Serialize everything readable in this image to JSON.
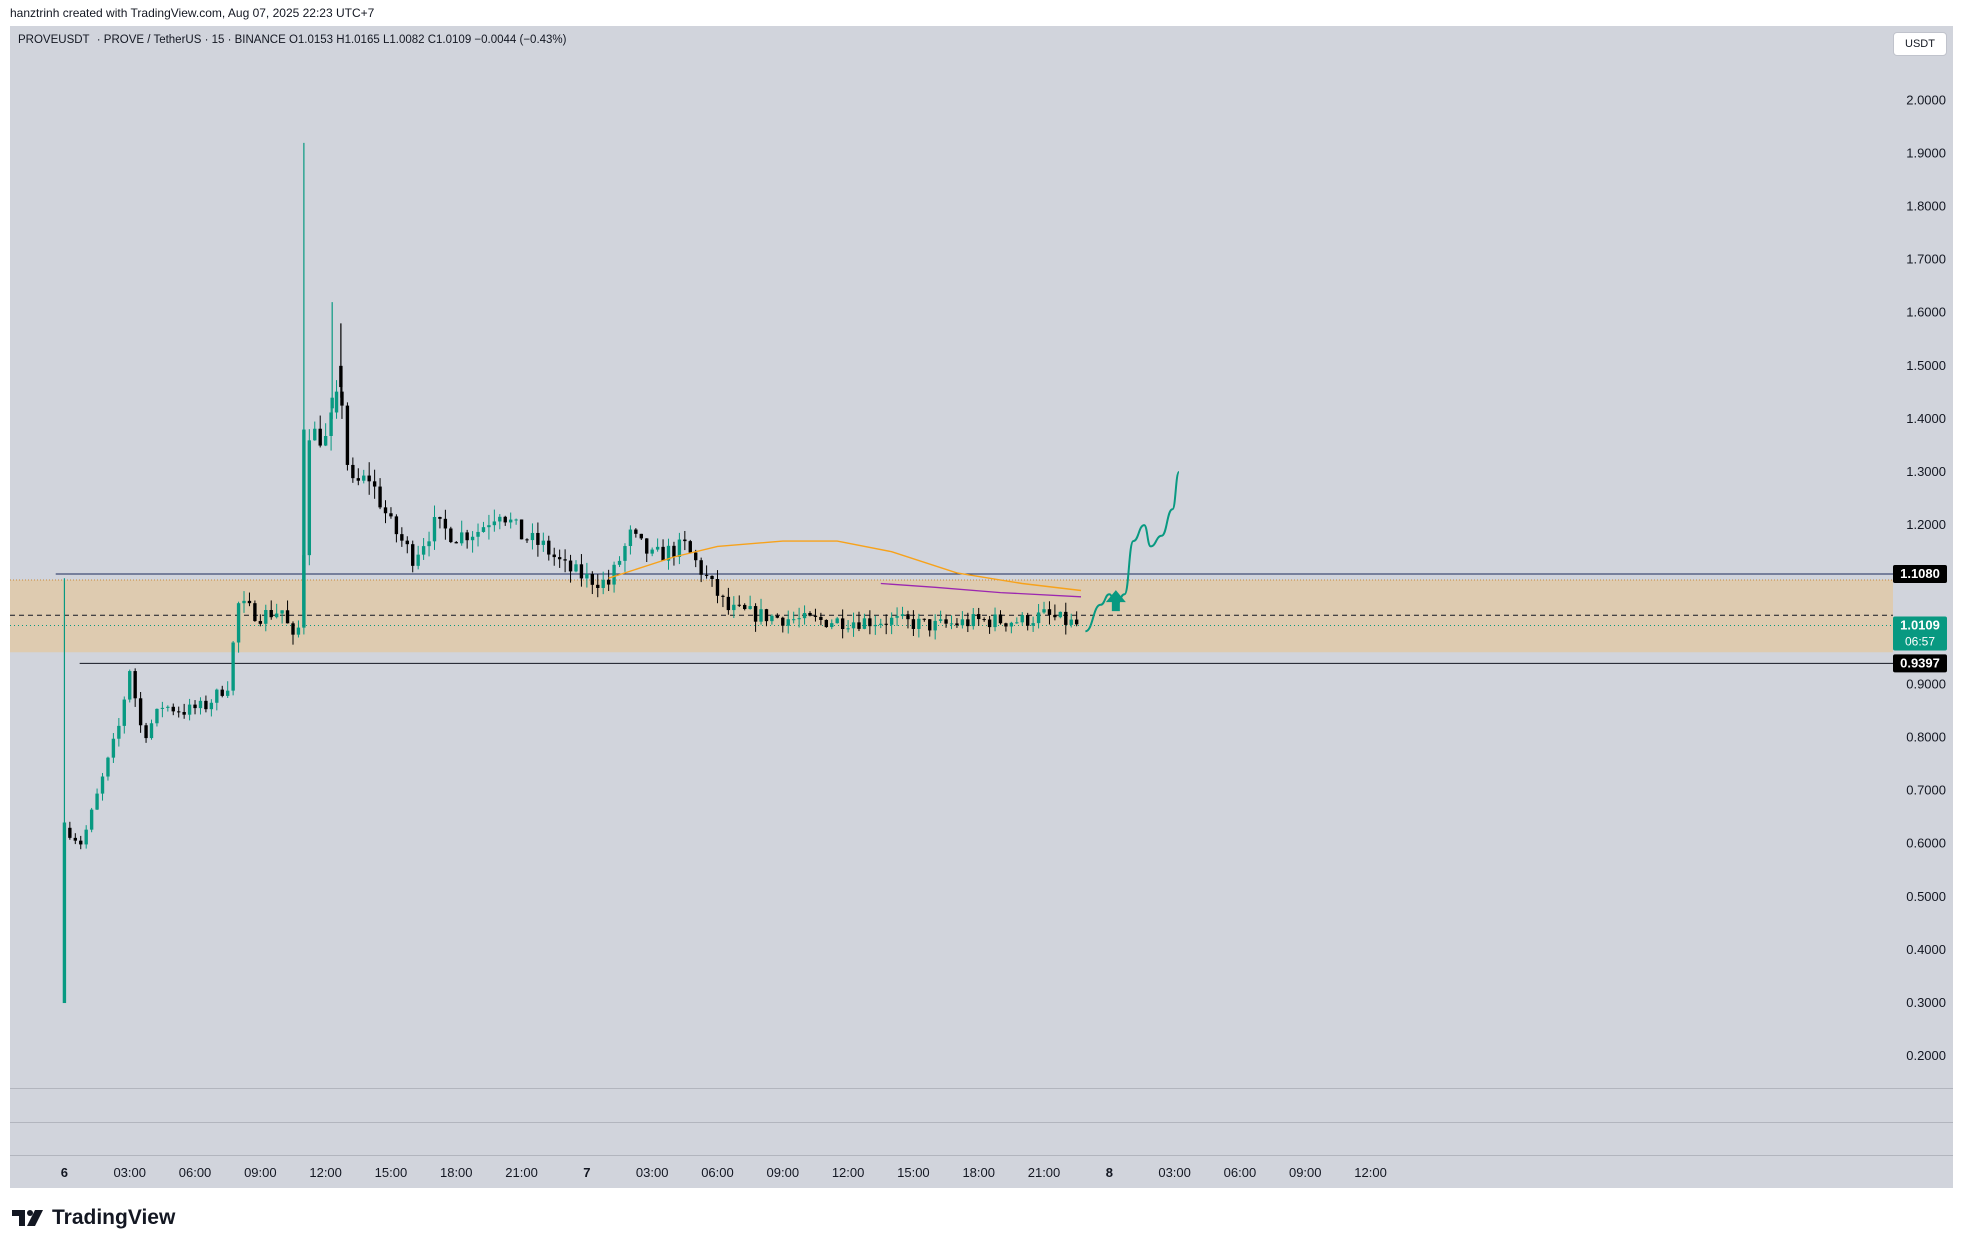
{
  "header": {
    "caption": "hanztrinh created with TradingView.com, Aug 07, 2025 22:23 UTC+7"
  },
  "legend": {
    "symbol": "PROVEUSDT",
    "description": "· PROVE / TetherUS · 15 · BINANCE",
    "open": "O1.0153",
    "high": "H1.0165",
    "low": "L1.0082",
    "close": "C1.0109",
    "change": "−0.0044 (−0.43%)"
  },
  "currency_button": "USDT",
  "brand": {
    "name": "TradingView"
  },
  "colors": {
    "background": "#d1d4dc",
    "up": "#089981",
    "down": "#000000",
    "zone": "#e0c9a8",
    "ema_orange": "#f7a21b",
    "ma_purple": "#9c27b0",
    "projection": "#089981"
  },
  "chart_data": {
    "type": "candlestick",
    "symbol": "PROVEUSDT",
    "interval": "15",
    "exchange": "BINANCE",
    "y_axis": {
      "range": [
        0.14,
        2.14
      ],
      "ticks": [
        "2.0000",
        "1.9000",
        "1.8000",
        "1.7000",
        "1.6000",
        "1.5000",
        "1.4000",
        "1.3000",
        "1.2000",
        "1.1000",
        "1.0000",
        "0.9000",
        "0.8000",
        "0.7000",
        "0.6000",
        "0.5000",
        "0.4000",
        "0.3000",
        "0.2000"
      ],
      "tick_values": [
        2.0,
        1.9,
        1.8,
        1.7,
        1.6,
        1.5,
        1.4,
        1.3,
        1.2,
        1.1,
        1.0,
        0.9,
        0.8,
        0.7,
        0.6,
        0.5,
        0.4,
        0.3,
        0.2
      ]
    },
    "x_axis": {
      "range_hours": [
        -2.5,
        84
      ],
      "ticks": [
        {
          "label": "6",
          "t": 0,
          "bold": true
        },
        {
          "label": "03:00",
          "t": 3
        },
        {
          "label": "06:00",
          "t": 6
        },
        {
          "label": "09:00",
          "t": 9
        },
        {
          "label": "12:00",
          "t": 12
        },
        {
          "label": "15:00",
          "t": 15
        },
        {
          "label": "18:00",
          "t": 18
        },
        {
          "label": "21:00",
          "t": 21
        },
        {
          "label": "7",
          "t": 24,
          "bold": true
        },
        {
          "label": "03:00",
          "t": 27
        },
        {
          "label": "06:00",
          "t": 30
        },
        {
          "label": "09:00",
          "t": 33
        },
        {
          "label": "12:00",
          "t": 36
        },
        {
          "label": "15:00",
          "t": 39
        },
        {
          "label": "18:00",
          "t": 42
        },
        {
          "label": "21:00",
          "t": 45
        },
        {
          "label": "8",
          "t": 48,
          "bold": true
        },
        {
          "label": "03:00",
          "t": 51
        },
        {
          "label": "06:00",
          "t": 54
        },
        {
          "label": "09:00",
          "t": 57
        },
        {
          "label": "12:00",
          "t": 60
        }
      ]
    },
    "levels": {
      "resistance": {
        "price": 1.108,
        "label": "1.1080"
      },
      "support": {
        "price": 0.9397,
        "label": "0.9397"
      },
      "last_price": {
        "price": 1.0109,
        "label": "1.0109",
        "countdown": "06:57"
      },
      "dashed_line": 1.0302,
      "dotted_line": 1.0109,
      "zone": [
        0.9606,
        1.0968
      ]
    },
    "price_path": [
      [
        0,
        0.63
      ],
      [
        0.8,
        0.6
      ],
      [
        1.5,
        0.69
      ],
      [
        2.5,
        0.82
      ],
      [
        3,
        0.93
      ],
      [
        3.6,
        0.8
      ],
      [
        4.5,
        0.86
      ],
      [
        5.5,
        0.85
      ],
      [
        6.5,
        0.86
      ],
      [
        7.5,
        0.9
      ],
      [
        8,
        1.05
      ],
      [
        9,
        1.03
      ],
      [
        10,
        1.04
      ],
      [
        10.6,
        0.97
      ],
      [
        10.9,
        1.04
      ],
      [
        11.2,
        1.38
      ],
      [
        12,
        1.36
      ],
      [
        12.7,
        1.46
      ],
      [
        13.1,
        1.27
      ],
      [
        14,
        1.29
      ],
      [
        15,
        1.2
      ],
      [
        16,
        1.14
      ],
      [
        17,
        1.2
      ],
      [
        18,
        1.18
      ],
      [
        19,
        1.19
      ],
      [
        20,
        1.23
      ],
      [
        21,
        1.18
      ],
      [
        22,
        1.16
      ],
      [
        23,
        1.12
      ],
      [
        24,
        1.1
      ],
      [
        25,
        1.09
      ],
      [
        26,
        1.18
      ],
      [
        27,
        1.14
      ],
      [
        28.5,
        1.16
      ],
      [
        29.5,
        1.1
      ],
      [
        30.5,
        1.04
      ],
      [
        32,
        1.03
      ],
      [
        34,
        1.02
      ],
      [
        36,
        1.02
      ],
      [
        38,
        1.02
      ],
      [
        40,
        1.01
      ],
      [
        42,
        1.02
      ],
      [
        44,
        1.02
      ],
      [
        45,
        1.03
      ],
      [
        46.6,
        1.011
      ]
    ],
    "wicks": [
      {
        "t": 0,
        "high": 1.1,
        "low": 0.3,
        "open": 0.3,
        "close": 0.64,
        "bull": true
      },
      {
        "t": 11.0,
        "high": 1.92,
        "low": 1.02,
        "open": 1.04,
        "close": 1.38,
        "bull": true
      },
      {
        "t": 12.3,
        "high": 1.62,
        "low": 1.4,
        "open": 1.42,
        "close": 1.44,
        "bull": true
      },
      {
        "t": 12.7,
        "high": 1.58,
        "low": 1.44,
        "open": 1.5,
        "close": 1.46,
        "bull": false
      }
    ],
    "indicators": {
      "orange_ma": [
        [
          25,
          1.1
        ],
        [
          28,
          1.14
        ],
        [
          30,
          1.16
        ],
        [
          33,
          1.17
        ],
        [
          35.5,
          1.17
        ],
        [
          38,
          1.15
        ],
        [
          41,
          1.11
        ],
        [
          44,
          1.09
        ],
        [
          46.7,
          1.077
        ]
      ],
      "purple_ma": [
        [
          37.5,
          1.09
        ],
        [
          40,
          1.083
        ],
        [
          43,
          1.073
        ],
        [
          46.7,
          1.065
        ]
      ]
    },
    "projection": [
      [
        46.9,
        1.0
      ],
      [
        47.6,
        1.05
      ],
      [
        48.0,
        1.07
      ],
      [
        48.3,
        1.05
      ],
      [
        48.7,
        1.07
      ],
      [
        49.1,
        1.17
      ],
      [
        49.6,
        1.2
      ],
      [
        49.9,
        1.16
      ],
      [
        50.4,
        1.18
      ],
      [
        50.9,
        1.23
      ],
      [
        51.2,
        1.3
      ]
    ],
    "arrow": {
      "t": 48.3,
      "price": 1.055,
      "direction": "up"
    }
  }
}
